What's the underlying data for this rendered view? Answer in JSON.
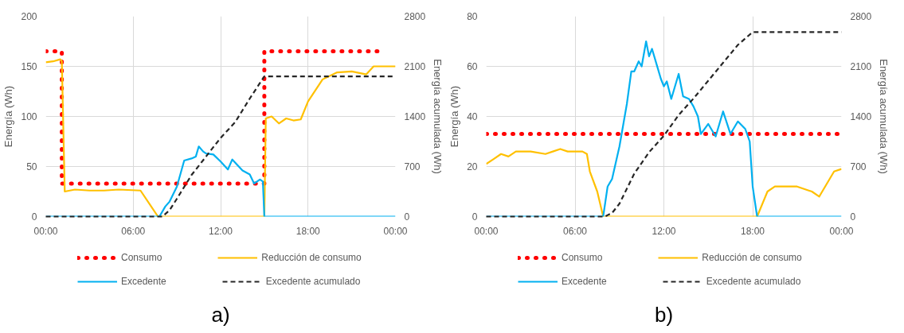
{
  "chart_data": [
    {
      "type": "line",
      "ylabel": "Energía (Wh)",
      "y2label": "Energía acumulada (Wh)",
      "xlim": [
        0,
        24
      ],
      "xticks": [
        {
          "value": 0,
          "label": "00:00"
        },
        {
          "value": 6,
          "label": "06:00"
        },
        {
          "value": 12,
          "label": "12:00"
        },
        {
          "value": 18,
          "label": "18:00"
        },
        {
          "value": 24,
          "label": "00:00"
        }
      ],
      "ylim": [
        0,
        200
      ],
      "yticks": [
        0,
        50,
        100,
        150,
        200
      ],
      "y2lim": [
        0,
        2800
      ],
      "y2ticks": [
        0,
        700,
        1400,
        2100,
        2800
      ],
      "grid": true,
      "legend": "bottom",
      "annotations": [
        "a)"
      ],
      "series": [
        {
          "name": "Consumo",
          "color": "#ff0000",
          "line_style": "dotted",
          "x": [
            0,
            1.1,
            1.1,
            15,
            15,
            23
          ],
          "values": [
            165,
            165,
            33,
            33,
            165,
            165
          ]
        },
        {
          "name": "Reducción de consumo",
          "color": "#ffc000",
          "line_style": "solid",
          "x": [
            0,
            0.5,
            1,
            1.1,
            1.3,
            2,
            3,
            4,
            5,
            6.5,
            7.7,
            15,
            15.1,
            15.5,
            16,
            16.5,
            17,
            17.5,
            18,
            19,
            20,
            21,
            22,
            22.5,
            23.5,
            24
          ],
          "values": [
            154,
            155,
            157,
            155,
            25,
            27,
            26,
            26,
            27,
            26,
            0,
            0,
            98,
            100,
            93,
            98,
            96,
            97,
            115,
            137,
            144,
            145,
            142,
            150,
            150,
            150
          ]
        },
        {
          "name": "Excedente",
          "color": "#00b0f0",
          "line_style": "solid",
          "x": [
            0,
            7.8,
            8.2,
            8.5,
            9,
            9.5,
            10,
            10.3,
            10.5,
            10.8,
            11,
            11.5,
            12,
            12.5,
            12.8,
            13.5,
            14,
            14.3,
            14.7,
            14.9,
            15,
            24
          ],
          "values": [
            0,
            0,
            10,
            15,
            30,
            56,
            58,
            60,
            70,
            65,
            63,
            62,
            55,
            47,
            57,
            46,
            42,
            33,
            37,
            35,
            0,
            0
          ]
        },
        {
          "name": "Excedente acumulado",
          "color": "#262626",
          "line_style": "dashed",
          "axis": "y2",
          "x": [
            0,
            8,
            8.5,
            9,
            10,
            11,
            12,
            13,
            14,
            15,
            24
          ],
          "values": [
            0,
            0,
            90,
            250,
            580,
            840,
            1100,
            1320,
            1650,
            1960,
            1960
          ]
        }
      ]
    },
    {
      "type": "line",
      "ylabel": "Energía (Wh)",
      "y2label": "Energía acumulada (Wh)",
      "xlim": [
        0,
        24
      ],
      "xticks": [
        {
          "value": 0,
          "label": "00:00"
        },
        {
          "value": 6,
          "label": "06:00"
        },
        {
          "value": 12,
          "label": "12:00"
        },
        {
          "value": 18,
          "label": "18:00"
        },
        {
          "value": 24,
          "label": "00:00"
        }
      ],
      "ylim": [
        0,
        80
      ],
      "yticks": [
        0,
        20,
        40,
        60,
        80
      ],
      "y2lim": [
        0,
        2800
      ],
      "y2ticks": [
        0,
        700,
        1400,
        2100,
        2800
      ],
      "grid": true,
      "legend": "bottom",
      "annotations": [
        "b)"
      ],
      "series": [
        {
          "name": "Consumo",
          "color": "#ff0000",
          "line_style": "dotted",
          "x": [
            0,
            24
          ],
          "values": [
            33,
            33
          ]
        },
        {
          "name": "Reducción de consumo",
          "color": "#ffc000",
          "line_style": "solid",
          "x": [
            0,
            0.5,
            1,
            1.5,
            2,
            3,
            4,
            4.5,
            5,
            5.5,
            6.5,
            6.8,
            7,
            7.5,
            7.9,
            18.3,
            19,
            19.5,
            20,
            21,
            22,
            22.5,
            23,
            23.5,
            24
          ],
          "values": [
            21,
            23,
            25,
            24,
            26,
            26,
            25,
            26,
            27,
            26,
            26,
            25,
            18,
            10,
            0,
            0,
            10,
            12,
            12,
            12,
            10,
            8,
            13,
            18,
            19
          ]
        },
        {
          "name": "Excedente",
          "color": "#00b0f0",
          "line_style": "solid",
          "x": [
            0,
            7.9,
            8.2,
            8.5,
            9,
            9.5,
            9.8,
            10,
            10.3,
            10.5,
            10.8,
            11,
            11.2,
            11.5,
            11.8,
            12,
            12.2,
            12.5,
            13,
            13.3,
            13.7,
            14,
            14.3,
            14.5,
            15,
            15.5,
            16,
            16.5,
            17,
            17.5,
            17.8,
            18,
            18.3,
            24
          ],
          "values": [
            0,
            0,
            12,
            15,
            28,
            45,
            58,
            58,
            62,
            60,
            70,
            64,
            67,
            61,
            55,
            52,
            54,
            47,
            57,
            48,
            47,
            44,
            40,
            33,
            37,
            32,
            42,
            33,
            38,
            35,
            30,
            12,
            0,
            0
          ]
        },
        {
          "name": "Excedente acumulado",
          "color": "#262626",
          "line_style": "dashed",
          "axis": "y2",
          "x": [
            0,
            8,
            8.5,
            9,
            10,
            11,
            12,
            13,
            14,
            15,
            16,
            17,
            18,
            24
          ],
          "values": [
            0,
            0,
            50,
            180,
            600,
            900,
            1130,
            1420,
            1650,
            1900,
            2150,
            2400,
            2580,
            2580
          ]
        }
      ]
    }
  ]
}
